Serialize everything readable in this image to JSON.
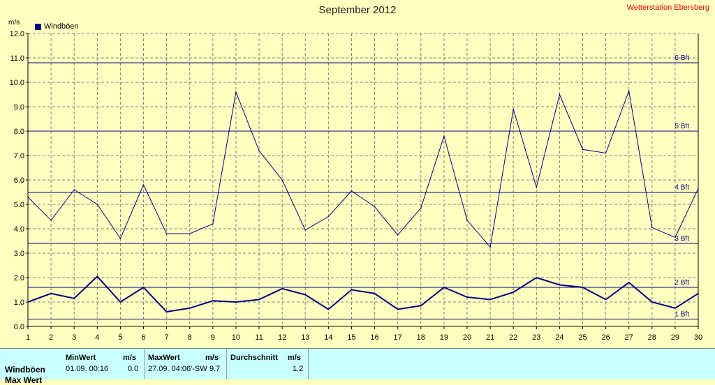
{
  "header": {
    "title": "September 2012",
    "station": "Wetterstation Ebersberg"
  },
  "chart_data": {
    "type": "line",
    "title": "September 2012",
    "ylabel": "m/s",
    "ylim": [
      0,
      12
    ],
    "yticks": [
      "0.0",
      "1.0",
      "2.0",
      "3.0",
      "4.0",
      "5.0",
      "6.0",
      "7.0",
      "8.0",
      "9.0",
      "10.0",
      "11.0",
      "12.0"
    ],
    "x": [
      1,
      2,
      3,
      4,
      5,
      6,
      7,
      8,
      9,
      10,
      11,
      12,
      13,
      14,
      15,
      16,
      17,
      18,
      19,
      20,
      21,
      22,
      23,
      24,
      25,
      26,
      27,
      28,
      29,
      30
    ],
    "xticks": [
      "1",
      "2",
      "3",
      "4",
      "5",
      "6",
      "7",
      "8",
      "9",
      "10",
      "11",
      "12",
      "13",
      "14",
      "15",
      "16",
      "17",
      "18",
      "19",
      "20",
      "21",
      "22",
      "23",
      "24",
      "25",
      "26",
      "27",
      "28",
      "29",
      "30"
    ],
    "grid": true,
    "legend": "top-left",
    "series": [
      {
        "name": "Windböen",
        "color": "#000080",
        "values": [
          5.3,
          4.35,
          5.6,
          5.0,
          3.6,
          5.8,
          3.8,
          3.8,
          4.2,
          9.6,
          7.2,
          6.0,
          3.95,
          4.5,
          5.55,
          4.9,
          3.75,
          4.85,
          7.8,
          4.35,
          3.25,
          8.9,
          5.7,
          9.5,
          7.25,
          7.1,
          9.65,
          4.05,
          3.65,
          5.65
        ]
      },
      {
        "name": "",
        "color": "#000080",
        "values": [
          1.0,
          1.35,
          1.15,
          2.05,
          1.0,
          1.6,
          0.6,
          0.75,
          1.05,
          1.0,
          1.1,
          1.55,
          1.3,
          0.7,
          1.5,
          1.35,
          0.7,
          0.85,
          1.6,
          1.2,
          1.1,
          1.4,
          2.0,
          1.7,
          1.6,
          1.1,
          1.8,
          1.0,
          0.75,
          1.35
        ]
      }
    ],
    "reference_lines": [
      {
        "label": "1 Bft",
        "value": 0.3
      },
      {
        "label": "2 Bft",
        "value": 1.6
      },
      {
        "label": "3 Bft",
        "value": 3.4
      },
      {
        "label": "4 Bft",
        "value": 5.5
      },
      {
        "label": "5 Bft",
        "value": 8.0
      },
      {
        "label": "6 Bft",
        "value": 10.8
      }
    ]
  },
  "stats": {
    "row_label": "Windböen",
    "row_label_2": "Max Wert",
    "min_header": "MinWert",
    "min_unit": "m/s",
    "min_date": "01.09.  00:16",
    "min_value": "0.0",
    "max_header": "MaxWert",
    "max_unit": "m/s",
    "max_date": "27.09.  04:06'-SW",
    "max_value": "9.7",
    "avg_header": "Durchschnitt",
    "avg_unit": "m/s",
    "avg_value": "1.2"
  }
}
